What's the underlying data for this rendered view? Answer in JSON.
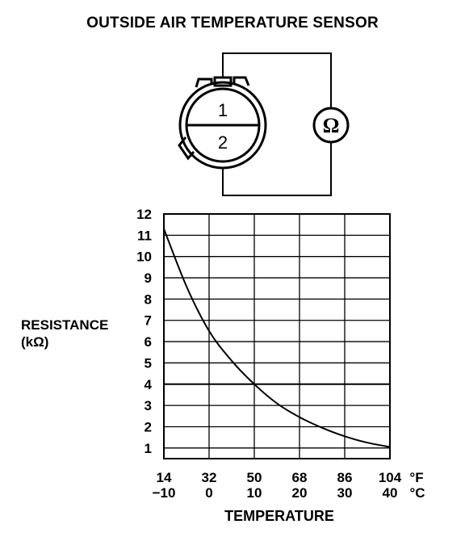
{
  "title": "OUTSIDE AIR TEMPERATURE SENSOR",
  "connector": {
    "pin_top": "1",
    "pin_bottom": "2",
    "meter_symbol": "Ω",
    "meter_icon": "ohmmeter-icon"
  },
  "chart_data": {
    "type": "line",
    "xlabel": "TEMPERATURE",
    "ylabel": "RESISTANCE",
    "ylabel_unit": "(kΩ)",
    "x_unit_f": "°F",
    "x_unit_c": "°C",
    "x_ticks_f": [
      "14",
      "32",
      "50",
      "68",
      "86",
      "104"
    ],
    "x_ticks_c": [
      "−10",
      "0",
      "10",
      "20",
      "30",
      "40"
    ],
    "y_ticks": [
      "1",
      "2",
      "3",
      "4",
      "5",
      "6",
      "7",
      "8",
      "9",
      "10",
      "11",
      "12"
    ],
    "xlim_c": [
      -10,
      40
    ],
    "ylim": [
      0.5,
      12
    ],
    "grid": true,
    "series": [
      {
        "x_c": [
          -10,
          -5,
          0,
          5,
          10,
          15,
          20,
          25,
          30,
          35,
          40
        ],
        "y_kohm": [
          11.3,
          8.6,
          6.5,
          5.1,
          4.0,
          3.1,
          2.45,
          1.95,
          1.55,
          1.25,
          1.05
        ]
      }
    ]
  }
}
